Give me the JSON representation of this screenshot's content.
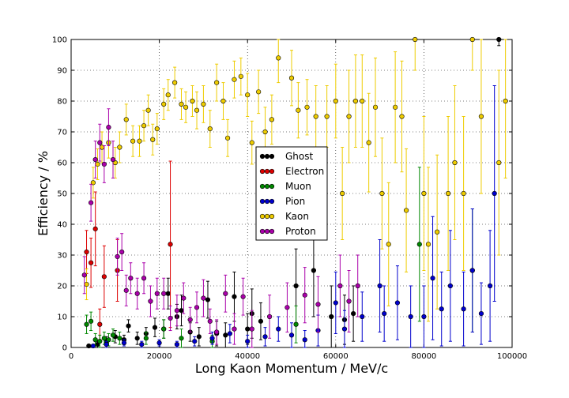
{
  "chart_data": {
    "type": "scatter",
    "xlabel": "Long Kaon Momentum / MeV/c",
    "ylabel": "Efficiency / %",
    "xlim": [
      0,
      100000
    ],
    "ylim": [
      0,
      100
    ],
    "xticks": [
      0,
      20000,
      40000,
      60000,
      80000,
      100000
    ],
    "yticks": [
      0,
      10,
      20,
      30,
      40,
      50,
      60,
      70,
      80,
      90,
      100
    ],
    "grid": true,
    "legend_position": "center",
    "error_bars": true,
    "series": [
      {
        "name": "Ghost",
        "color": "#000000",
        "points": [
          [
            4000,
            0.5,
            0.5
          ],
          [
            6000,
            1,
            1
          ],
          [
            8000,
            2,
            1.5
          ],
          [
            10000,
            3.5,
            2
          ],
          [
            12000,
            2.5,
            1.5
          ],
          [
            13000,
            7,
            2
          ],
          [
            15000,
            3,
            2
          ],
          [
            17000,
            4.5,
            2
          ],
          [
            19000,
            6.5,
            3
          ],
          [
            21000,
            6,
            3
          ],
          [
            22000,
            17.5,
            5
          ],
          [
            24000,
            10,
            4
          ],
          [
            25000,
            12,
            5
          ],
          [
            27000,
            5,
            3
          ],
          [
            29000,
            3.5,
            3
          ],
          [
            31000,
            15.5,
            6
          ],
          [
            33000,
            4.5,
            4
          ],
          [
            35000,
            4,
            4
          ],
          [
            37000,
            16.5,
            8
          ],
          [
            40000,
            6,
            5
          ],
          [
            41000,
            11,
            8
          ],
          [
            43000,
            8.5,
            6
          ],
          [
            51000,
            20,
            12
          ],
          [
            55000,
            25,
            15
          ],
          [
            59000,
            10,
            10
          ],
          [
            62000,
            9,
            8
          ],
          [
            64000,
            11,
            9
          ],
          [
            97000,
            100,
            2
          ]
        ]
      },
      {
        "name": "Electron",
        "color": "#dd0000",
        "points": [
          [
            3500,
            31,
            7
          ],
          [
            4500,
            27.5,
            8
          ],
          [
            5500,
            38.5,
            12
          ],
          [
            6500,
            7.5,
            5
          ],
          [
            7500,
            23,
            10
          ],
          [
            10500,
            25,
            10
          ],
          [
            22500,
            33.5,
            27
          ]
        ]
      },
      {
        "name": "Muon",
        "color": "#008800",
        "points": [
          [
            3500,
            7.5,
            3
          ],
          [
            4500,
            8.5,
            3
          ],
          [
            5500,
            2.5,
            2
          ],
          [
            6500,
            2,
            2
          ],
          [
            7500,
            3,
            2
          ],
          [
            8500,
            2.5,
            2
          ],
          [
            9500,
            4,
            2
          ],
          [
            11000,
            3,
            2
          ],
          [
            17000,
            3,
            2
          ],
          [
            21000,
            6,
            3
          ],
          [
            25000,
            3,
            3
          ],
          [
            32000,
            2,
            2
          ],
          [
            51000,
            7.5,
            6
          ],
          [
            79000,
            33.5,
            25
          ],
          [
            91000,
            25,
            20
          ]
        ]
      },
      {
        "name": "Pion",
        "color": "#0000cc",
        "points": [
          [
            5000,
            0.5,
            0.5
          ],
          [
            8000,
            1,
            1
          ],
          [
            12000,
            1.5,
            1
          ],
          [
            16000,
            1,
            1
          ],
          [
            20000,
            1.5,
            1
          ],
          [
            24000,
            1,
            1
          ],
          [
            28000,
            2,
            1.5
          ],
          [
            32000,
            3,
            2
          ],
          [
            36000,
            4.5,
            3
          ],
          [
            40000,
            2,
            2
          ],
          [
            44000,
            3.5,
            3
          ],
          [
            47000,
            6,
            4
          ],
          [
            50000,
            4,
            4
          ],
          [
            53000,
            2.5,
            3
          ],
          [
            56000,
            5.5,
            5
          ],
          [
            60000,
            14.5,
            10
          ],
          [
            62000,
            6,
            6
          ],
          [
            66000,
            10,
            8
          ],
          [
            70000,
            20,
            15
          ],
          [
            71000,
            11,
            9
          ],
          [
            74000,
            14.5,
            12
          ],
          [
            77000,
            10,
            10
          ],
          [
            80000,
            10,
            10
          ],
          [
            82000,
            22.5,
            20
          ],
          [
            84000,
            12.5,
            12
          ],
          [
            86000,
            20,
            18
          ],
          [
            89000,
            12.5,
            12
          ],
          [
            91000,
            25,
            20
          ],
          [
            93000,
            11,
            10
          ],
          [
            95000,
            20,
            18
          ],
          [
            96000,
            50,
            35
          ]
        ]
      },
      {
        "name": "Kaon",
        "color": "#eecc00",
        "points": [
          [
            3500,
            20.5,
            5
          ],
          [
            5000,
            53.5,
            5
          ],
          [
            6000,
            59.5,
            5
          ],
          [
            7000,
            65,
            5
          ],
          [
            8500,
            66.5,
            5
          ],
          [
            10000,
            60,
            5
          ],
          [
            11000,
            65,
            5
          ],
          [
            12500,
            74,
            5
          ],
          [
            14000,
            67,
            5
          ],
          [
            15500,
            67,
            5
          ],
          [
            16500,
            72,
            5
          ],
          [
            17500,
            77,
            5
          ],
          [
            18500,
            67.5,
            5
          ],
          [
            19500,
            71,
            5
          ],
          [
            21000,
            79,
            5
          ],
          [
            22000,
            82,
            5
          ],
          [
            23500,
            86,
            5
          ],
          [
            25000,
            79,
            5
          ],
          [
            26000,
            78,
            5
          ],
          [
            27500,
            80,
            5
          ],
          [
            28500,
            77,
            6
          ],
          [
            30000,
            79,
            6
          ],
          [
            31500,
            71,
            6
          ],
          [
            33000,
            86,
            6
          ],
          [
            34500,
            80,
            6
          ],
          [
            35500,
            68,
            6
          ],
          [
            37000,
            87,
            6
          ],
          [
            38500,
            88,
            6
          ],
          [
            40000,
            82,
            7
          ],
          [
            41000,
            66.5,
            7
          ],
          [
            42500,
            83,
            7
          ],
          [
            44000,
            70,
            8
          ],
          [
            45500,
            74,
            8
          ],
          [
            47000,
            94,
            8
          ],
          [
            50000,
            87.5,
            9
          ],
          [
            51500,
            77,
            9
          ],
          [
            53500,
            78,
            9
          ],
          [
            55500,
            75,
            10
          ],
          [
            58000,
            75,
            10
          ],
          [
            60000,
            80,
            12
          ],
          [
            61500,
            50,
            15
          ],
          [
            63000,
            75,
            15
          ],
          [
            64500,
            80,
            15
          ],
          [
            66000,
            80,
            15
          ],
          [
            67500,
            66.5,
            16
          ],
          [
            69000,
            78,
            16
          ],
          [
            70500,
            50,
            18
          ],
          [
            72000,
            33.5,
            20
          ],
          [
            73500,
            78,
            18
          ],
          [
            75000,
            75,
            18
          ],
          [
            76000,
            44.5,
            20
          ],
          [
            78000,
            100,
            10
          ],
          [
            80000,
            50,
            25
          ],
          [
            81000,
            33.5,
            25
          ],
          [
            83000,
            37.5,
            25
          ],
          [
            85500,
            50,
            25
          ],
          [
            87000,
            60,
            25
          ],
          [
            89000,
            50,
            25
          ],
          [
            91000,
            100,
            10
          ],
          [
            93000,
            75,
            25
          ],
          [
            97000,
            60,
            30
          ],
          [
            98500,
            80,
            25
          ]
        ]
      },
      {
        "name": "Proton",
        "color": "#aa00aa",
        "points": [
          [
            3000,
            23.5,
            6
          ],
          [
            4500,
            47,
            6
          ],
          [
            5500,
            61,
            6
          ],
          [
            6500,
            66.5,
            6
          ],
          [
            7500,
            59.5,
            6
          ],
          [
            8500,
            71.5,
            6
          ],
          [
            9500,
            61,
            6
          ],
          [
            10500,
            29.5,
            6
          ],
          [
            11500,
            31,
            6
          ],
          [
            12500,
            18.5,
            5
          ],
          [
            13500,
            22.5,
            5
          ],
          [
            15000,
            17.5,
            5
          ],
          [
            16500,
            22.5,
            5
          ],
          [
            18000,
            15,
            5
          ],
          [
            19500,
            17.5,
            5
          ],
          [
            21000,
            17.5,
            5
          ],
          [
            22500,
            9.5,
            4
          ],
          [
            24000,
            12,
            5
          ],
          [
            25500,
            16,
            5
          ],
          [
            27000,
            9,
            4
          ],
          [
            28500,
            13,
            5
          ],
          [
            30000,
            16,
            6
          ],
          [
            31500,
            8.5,
            4
          ],
          [
            33000,
            5,
            4
          ],
          [
            35000,
            17.5,
            6
          ],
          [
            37000,
            6,
            5
          ],
          [
            39000,
            16.5,
            6
          ],
          [
            41000,
            6,
            6
          ],
          [
            45000,
            10,
            7
          ],
          [
            49000,
            13,
            8
          ],
          [
            53000,
            17,
            9
          ],
          [
            56000,
            14,
            9
          ],
          [
            61000,
            20,
            10
          ],
          [
            63000,
            15,
            10
          ],
          [
            65000,
            20,
            10
          ]
        ]
      }
    ]
  }
}
